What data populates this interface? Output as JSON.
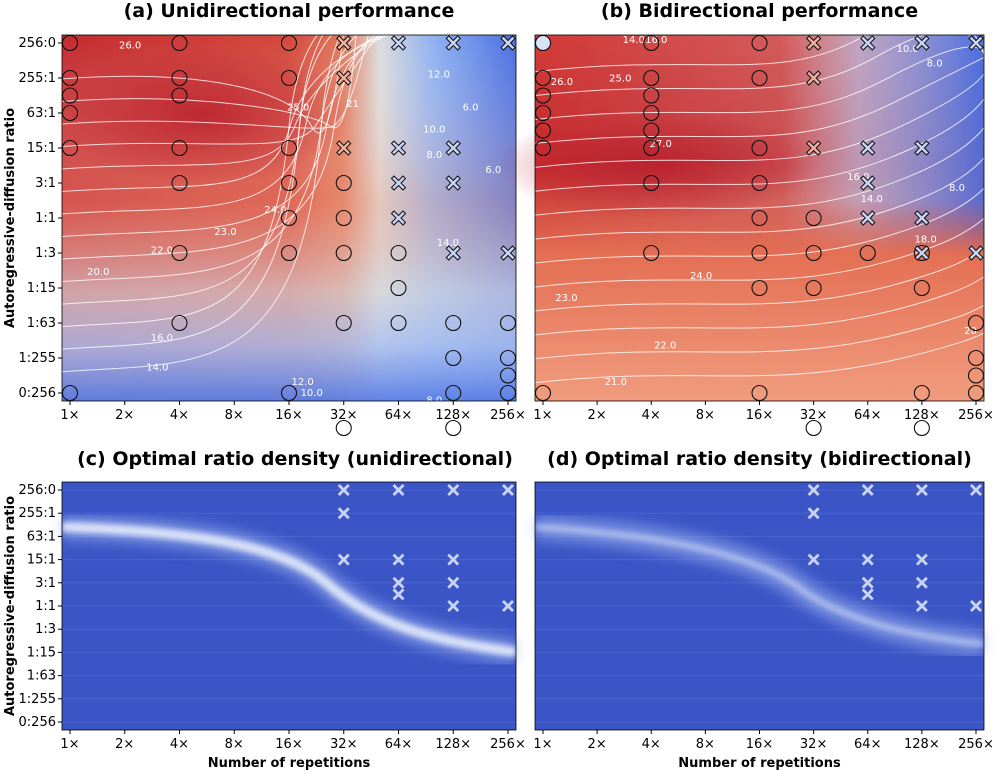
{
  "chart_data": [
    {
      "type": "heatmap",
      "title": "(a) Unidirectional performance",
      "xlabel": "",
      "ylabel": "Autoregressive-diffusion ratio",
      "x_ticks": [
        "1×",
        "2×",
        "4×",
        "8×",
        "16×",
        "32×",
        "64×",
        "128×",
        "256×"
      ],
      "y_ticks": [
        "256:0",
        "255:1",
        "63:1",
        "15:1",
        "3:1",
        "1:1",
        "1:3",
        "1:15",
        "1:63",
        "1:255",
        "0:256"
      ],
      "contour_labels": [
        "26.0",
        "25.0",
        "21",
        "24.0",
        "23.0",
        "22.0",
        "20.0",
        "16.0",
        "14.0",
        "12.0",
        "10.0",
        "8.0",
        "6.0",
        "12.0",
        "10.0",
        "8.0",
        "14.0",
        "6.0"
      ],
      "circles": [
        [
          0,
          0
        ],
        [
          2,
          0
        ],
        [
          4,
          0
        ],
        [
          0,
          1
        ],
        [
          2,
          1
        ],
        [
          4,
          1
        ],
        [
          0,
          1.5
        ],
        [
          2,
          1.5
        ],
        [
          0,
          2
        ],
        [
          0,
          3
        ],
        [
          2,
          3
        ],
        [
          4,
          3
        ],
        [
          2,
          4
        ],
        [
          4,
          4
        ],
        [
          5,
          4
        ],
        [
          4,
          5
        ],
        [
          5,
          5
        ],
        [
          2,
          6
        ],
        [
          4,
          6
        ],
        [
          5,
          6
        ],
        [
          6,
          6
        ],
        [
          6,
          7
        ],
        [
          2,
          8
        ],
        [
          5,
          8
        ],
        [
          6,
          8
        ],
        [
          7,
          8
        ],
        [
          8,
          8
        ],
        [
          7,
          9
        ],
        [
          8,
          9
        ],
        [
          8,
          9.5
        ],
        [
          0,
          10
        ],
        [
          4,
          10
        ],
        [
          7,
          10
        ],
        [
          8,
          10
        ],
        [
          5,
          11
        ],
        [
          7,
          11
        ]
      ],
      "crosses": [
        [
          5,
          0
        ],
        [
          6,
          0
        ],
        [
          7,
          0
        ],
        [
          8,
          0
        ],
        [
          5,
          1
        ],
        [
          5,
          3
        ],
        [
          6,
          3
        ],
        [
          7,
          3
        ],
        [
          6,
          4
        ],
        [
          7,
          4
        ],
        [
          6,
          5
        ],
        [
          7,
          6
        ],
        [
          8,
          6
        ]
      ]
    },
    {
      "type": "heatmap",
      "title": "(b) Bidirectional performance",
      "xlabel": "",
      "ylabel": "",
      "x_ticks": [
        "1×",
        "2×",
        "4×",
        "8×",
        "16×",
        "32×",
        "64×",
        "128×",
        "256×"
      ],
      "y_ticks": [
        "256:0",
        "255:1",
        "63:1",
        "15:1",
        "3:1",
        "1:1",
        "1:3",
        "1:15",
        "1:63",
        "1:255",
        "0:256"
      ],
      "contour_labels": [
        "14.0",
        "16.0",
        "26.0",
        "25.0",
        "27.0",
        "24.0",
        "23.0",
        "22.0",
        "21.0",
        "16.0",
        "14.0",
        "18.0",
        "10.0",
        "8.0",
        "8.0",
        "20"
      ],
      "circles": [
        [
          0,
          0
        ],
        [
          2,
          0
        ],
        [
          4,
          0
        ],
        [
          0,
          1
        ],
        [
          2,
          1
        ],
        [
          4,
          1
        ],
        [
          0,
          1.5
        ],
        [
          2,
          1.5
        ],
        [
          0,
          2
        ],
        [
          2,
          2
        ],
        [
          0,
          2.5
        ],
        [
          2,
          2.5
        ],
        [
          0,
          3
        ],
        [
          2,
          3
        ],
        [
          4,
          3
        ],
        [
          4,
          4
        ],
        [
          2,
          4
        ],
        [
          4,
          5
        ],
        [
          5,
          5
        ],
        [
          4,
          6
        ],
        [
          2,
          6
        ],
        [
          5,
          6
        ],
        [
          6,
          6
        ],
        [
          7,
          6
        ],
        [
          4,
          7
        ],
        [
          5,
          7
        ],
        [
          7,
          7
        ],
        [
          8,
          8
        ],
        [
          8,
          9
        ],
        [
          8,
          9.5
        ],
        [
          8,
          10
        ],
        [
          0,
          10
        ],
        [
          4,
          10
        ],
        [
          7,
          10
        ],
        [
          5,
          11
        ],
        [
          7,
          11
        ]
      ],
      "crosses": [
        [
          5,
          0
        ],
        [
          6,
          0
        ],
        [
          7,
          0
        ],
        [
          8,
          0
        ],
        [
          5,
          1
        ],
        [
          5,
          3
        ],
        [
          6,
          3
        ],
        [
          7,
          3
        ],
        [
          6,
          4
        ],
        [
          6,
          5
        ],
        [
          7,
          5
        ],
        [
          7,
          6
        ],
        [
          8,
          6
        ]
      ]
    },
    {
      "type": "heatmap",
      "title": "(c) Optimal ratio density (unidirectional)",
      "xlabel": "Number of repetitions",
      "ylabel": "Autoregressive-diffusion ratio",
      "x_ticks": [
        "1×",
        "2×",
        "4×",
        "8×",
        "16×",
        "32×",
        "64×",
        "128×",
        "256×"
      ],
      "y_ticks": [
        "256:0",
        "255:1",
        "63:1",
        "15:1",
        "3:1",
        "1:1",
        "1:3",
        "1:15",
        "1:63",
        "1:255",
        "0:256"
      ],
      "crosses": [
        [
          5,
          0
        ],
        [
          6,
          0
        ],
        [
          7,
          0
        ],
        [
          8,
          0
        ],
        [
          5,
          1
        ],
        [
          5,
          3
        ],
        [
          6,
          3
        ],
        [
          7,
          3
        ],
        [
          6,
          4
        ],
        [
          7,
          4
        ],
        [
          6,
          4.5
        ],
        [
          7,
          5
        ],
        [
          8,
          5
        ]
      ]
    },
    {
      "type": "heatmap",
      "title": "(d) Optimal ratio density (bidirectional)",
      "xlabel": "Number of repetitions",
      "ylabel": "",
      "x_ticks": [
        "1×",
        "2×",
        "4×",
        "8×",
        "16×",
        "32×",
        "64×",
        "128×",
        "256×"
      ],
      "y_ticks": [
        "256:0",
        "255:1",
        "63:1",
        "15:1",
        "3:1",
        "1:1",
        "1:3",
        "1:15",
        "1:63",
        "1:255",
        "0:256"
      ],
      "crosses": [
        [
          5,
          0
        ],
        [
          6,
          0
        ],
        [
          7,
          0
        ],
        [
          8,
          0
        ],
        [
          5,
          1
        ],
        [
          5,
          3
        ],
        [
          6,
          3
        ],
        [
          7,
          3
        ],
        [
          6,
          4
        ],
        [
          7,
          4
        ],
        [
          6,
          4.5
        ],
        [
          7,
          5
        ],
        [
          8,
          5
        ]
      ]
    }
  ]
}
